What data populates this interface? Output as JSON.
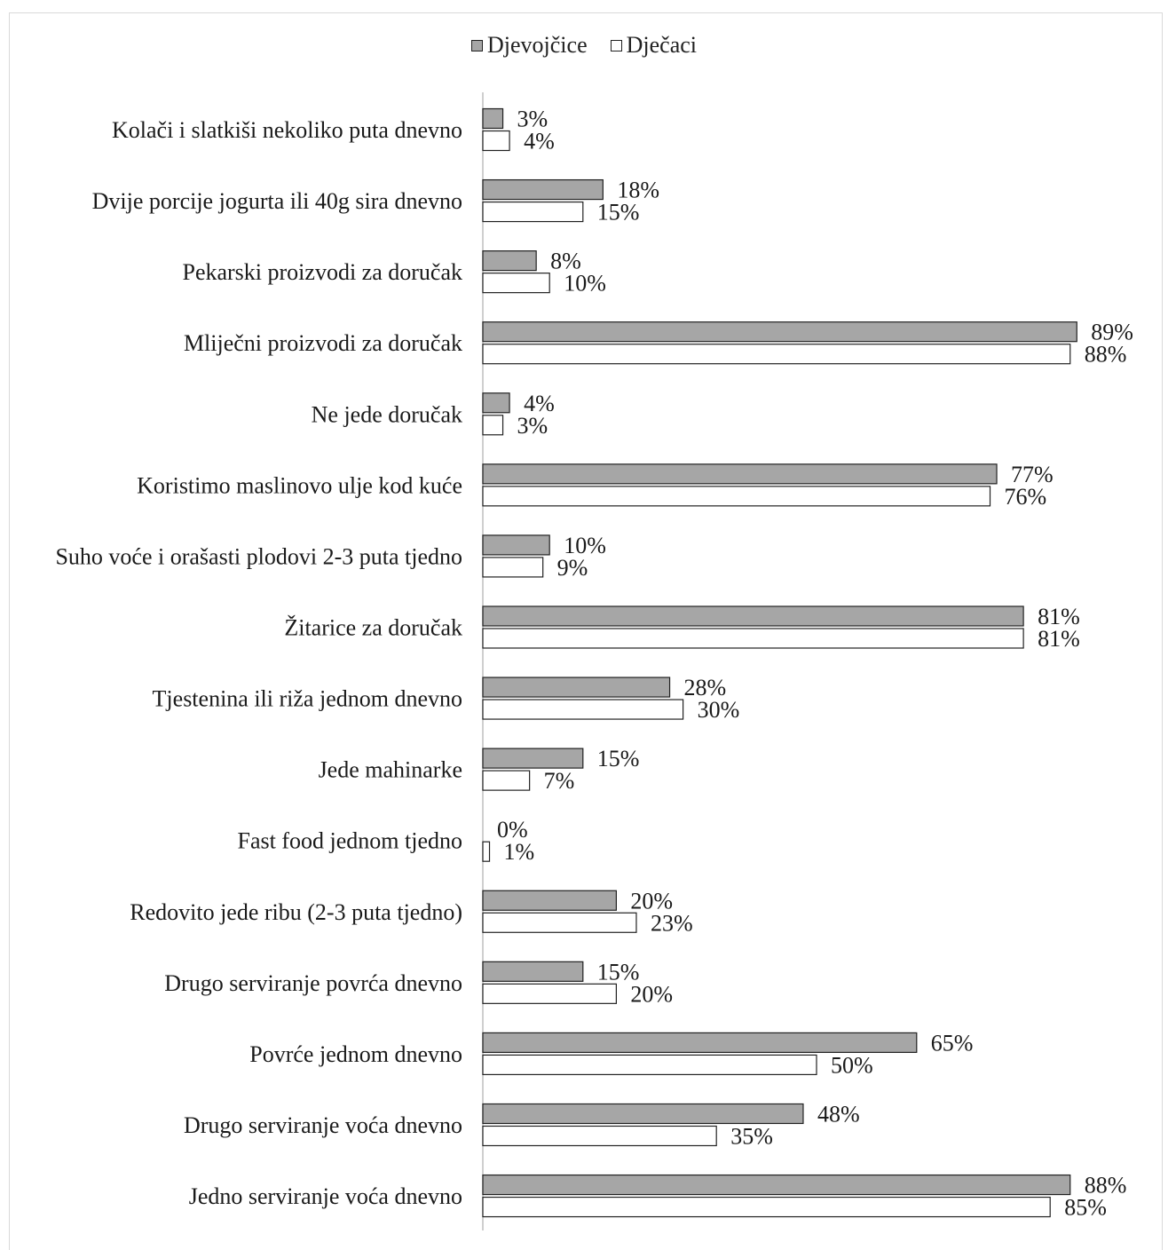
{
  "chart_data": {
    "type": "bar",
    "orientation": "horizontal",
    "title": "",
    "xlabel": "",
    "ylabel": "",
    "xlim": [
      0,
      100
    ],
    "grid": false,
    "legend_position": "top",
    "value_suffix": "%",
    "categories": [
      "Kolači i slatkiši nekoliko puta dnevno",
      "Dvije porcije jogurta ili 40g sira dnevno",
      "Pekarski proizvodi za doručak",
      "Mliječni proizvodi za doručak",
      "Ne jede doručak",
      "Koristimo maslinovo ulje kod kuće",
      "Suho voće i orašasti plodovi 2-3 puta tjedno",
      "Žitarice za doručak",
      "Tjestenina ili riža jednom dnevno",
      "Jede mahinarke",
      "Fast food jednom tjedno",
      "Redovito jede ribu (2-3 puta tjedno)",
      "Drugo serviranje povrća dnevno",
      "Povrće jednom dnevno",
      "Drugo serviranje voća dnevno",
      "Jedno serviranje voća dnevno"
    ],
    "series": [
      {
        "name": "Djevojčice",
        "color": "#a6a6a6",
        "values": [
          3,
          18,
          8,
          89,
          4,
          77,
          10,
          81,
          28,
          15,
          0,
          20,
          15,
          65,
          48,
          88
        ]
      },
      {
        "name": "Dječaci",
        "color": "#ffffff",
        "values": [
          4,
          15,
          10,
          88,
          3,
          76,
          9,
          81,
          30,
          7,
          1,
          23,
          20,
          50,
          35,
          85
        ]
      }
    ]
  }
}
